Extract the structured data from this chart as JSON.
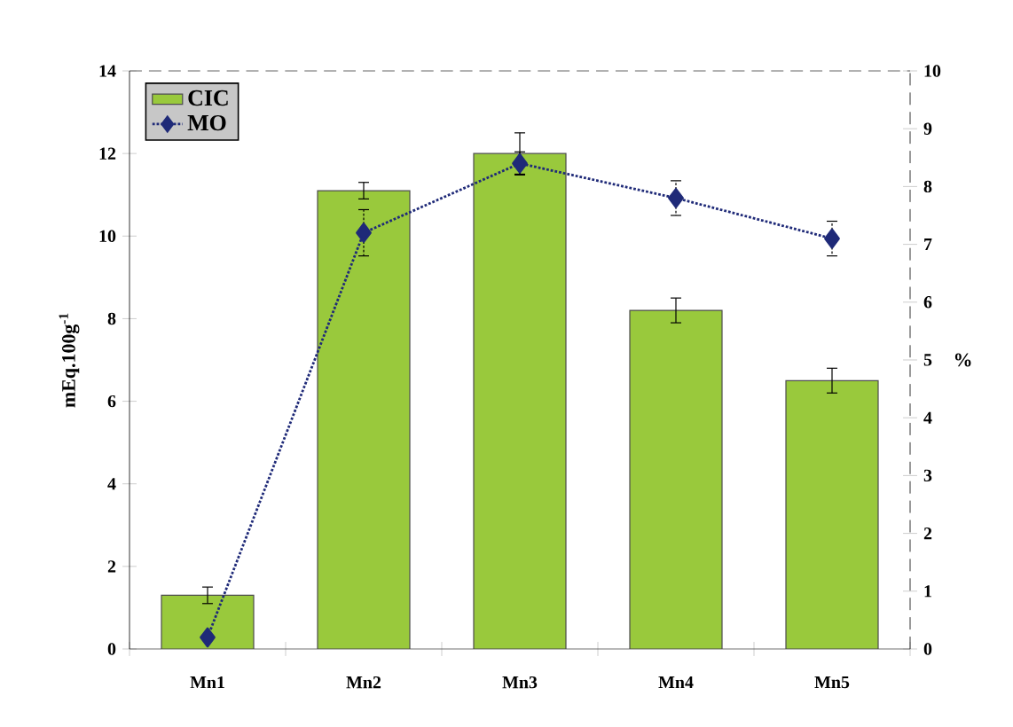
{
  "chart_data": {
    "type": "bar",
    "categories": [
      "Mn1",
      "Mn2",
      "Mn3",
      "Mn4",
      "Mn5"
    ],
    "ylabel": "mEq.100g$^{-1}$",
    "y2label": "%",
    "series": [
      {
        "name": "CIC",
        "color": "#99c93c",
        "values": [
          1.3,
          11.1,
          12.0,
          8.2,
          6.5
        ],
        "errors": [
          0.2,
          0.2,
          0.5,
          0.3,
          0.3
        ]
      },
      {
        "name": "MO",
        "type": "line",
        "axis": "y2",
        "color": "#1f2a78",
        "values": [
          0.2,
          7.2,
          8.4,
          7.8,
          7.1
        ],
        "errors": [
          null,
          0.4,
          0.2,
          0.3,
          0.3
        ]
      }
    ],
    "ylim": [
      0,
      14
    ],
    "yticks": [
      0,
      2,
      4,
      6,
      8,
      10,
      12,
      14
    ],
    "y2lim": [
      0,
      10
    ],
    "y2ticks": [
      0,
      1,
      2,
      3,
      4,
      5,
      6,
      7,
      8,
      9,
      10
    ],
    "marker": "diamond",
    "line_style": "dotted",
    "legend": "top left"
  }
}
